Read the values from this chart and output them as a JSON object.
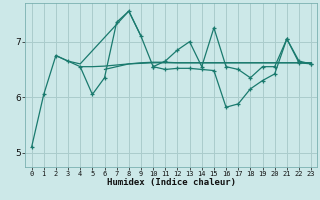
{
  "xlabel": "Humidex (Indice chaleur)",
  "background_color": "#cce8e8",
  "grid_color": "#aacccc",
  "line_color": "#1a7a6e",
  "xlim": [
    -0.5,
    23.5
  ],
  "ylim": [
    4.75,
    7.7
  ],
  "x_ticks": [
    0,
    1,
    2,
    3,
    4,
    5,
    6,
    7,
    8,
    9,
    10,
    11,
    12,
    13,
    14,
    15,
    16,
    17,
    18,
    19,
    20,
    21,
    22,
    23
  ],
  "y_ticks": [
    5,
    6,
    7
  ],
  "series": [
    {
      "x": [
        0,
        1,
        2,
        3,
        4,
        5,
        6,
        7,
        8,
        9,
        10,
        11,
        12,
        13,
        14,
        15,
        16,
        17,
        18,
        19,
        20,
        21,
        22,
        23
      ],
      "y": [
        5.1,
        6.05,
        6.75,
        6.65,
        6.55,
        6.05,
        6.35,
        7.35,
        7.55,
        7.1,
        6.55,
        6.65,
        6.85,
        7.0,
        6.55,
        7.25,
        6.55,
        6.5,
        6.35,
        6.55,
        6.55,
        7.05,
        6.65,
        6.6
      ],
      "marker": true
    },
    {
      "x": [
        2,
        3,
        4,
        8,
        9
      ],
      "y": [
        6.75,
        6.65,
        6.6,
        7.55,
        7.1
      ],
      "marker": false
    },
    {
      "x": [
        4,
        5,
        6,
        7,
        8,
        9,
        10,
        11,
        12,
        13,
        14,
        15,
        16,
        17,
        18,
        19,
        20,
        21,
        22,
        23
      ],
      "y": [
        6.55,
        6.55,
        6.56,
        6.58,
        6.6,
        6.61,
        6.62,
        6.62,
        6.62,
        6.62,
        6.62,
        6.62,
        6.62,
        6.62,
        6.62,
        6.62,
        6.62,
        6.62,
        6.62,
        6.62
      ],
      "marker": false
    },
    {
      "x": [
        6,
        7,
        8,
        9,
        10,
        11,
        12,
        13,
        14,
        15,
        16,
        17,
        18,
        19,
        20,
        21,
        22,
        23
      ],
      "y": [
        6.5,
        6.55,
        6.6,
        6.62,
        6.63,
        6.63,
        6.62,
        6.62,
        6.62,
        6.62,
        6.62,
        6.62,
        6.62,
        6.62,
        6.62,
        6.62,
        6.62,
        6.62
      ],
      "marker": false
    },
    {
      "x": [
        10,
        11,
        12,
        13,
        14,
        15,
        16,
        17,
        18,
        19,
        20,
        21,
        22,
        23
      ],
      "y": [
        6.55,
        6.5,
        6.52,
        6.52,
        6.5,
        6.48,
        5.82,
        5.88,
        6.15,
        6.3,
        6.42,
        7.05,
        6.62,
        6.6
      ],
      "marker": true
    }
  ]
}
